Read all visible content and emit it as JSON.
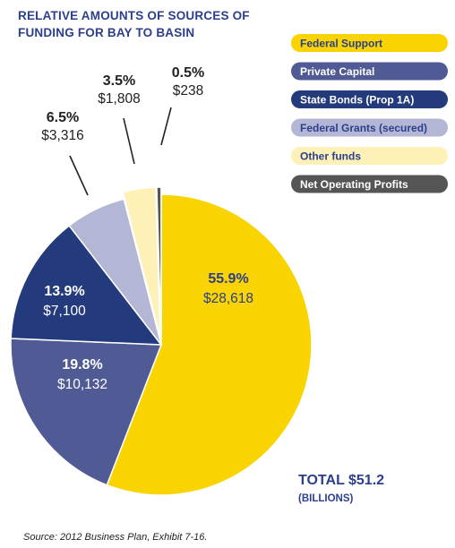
{
  "title": {
    "line1": "RELATIVE AMOUNTS OF SOURCES OF",
    "line2": "FUNDING FOR BAY TO BASIN"
  },
  "total": {
    "label": "TOTAL $51.2",
    "unit": "(BILLIONS)"
  },
  "source": "Source: 2012 Business Plan, Exhibit 7-16.",
  "colors": {
    "title": "#2b3f8c",
    "federal_support": "#f9d400",
    "private_capital": "#505b96",
    "state_bonds": "#233a7d",
    "federal_grants": "#b3b6d4",
    "other_funds": "#fdf1b8",
    "net_operating_profits": "#555555"
  },
  "chart_data": {
    "type": "pie",
    "title": "RELATIVE AMOUNTS OF SOURCES OF FUNDING FOR BAY TO BASIN",
    "slices": [
      {
        "label": "Federal Support",
        "percent": "55.9%",
        "value": "$28,618",
        "amount": 28618,
        "pct": 55.9,
        "color": "#f9d400",
        "text_color": "#2b3f8c",
        "label_position": "inside"
      },
      {
        "label": "Private Capital",
        "percent": "19.8%",
        "value": "$10,132",
        "amount": 10132,
        "pct": 19.8,
        "color": "#505b96",
        "text_color": "#ffffff",
        "label_position": "inside"
      },
      {
        "label": "State Bonds (Prop 1A)",
        "percent": "13.9%",
        "value": "$7,100",
        "amount": 7100,
        "pct": 13.9,
        "color": "#233a7d",
        "text_color": "#ffffff",
        "label_position": "inside"
      },
      {
        "label": "Federal Grants (secured)",
        "percent": "6.5%",
        "value": "$3,316",
        "amount": 3316,
        "pct": 6.5,
        "color": "#b3b6d4",
        "text_color": "#222222",
        "label_position": "outside"
      },
      {
        "label": "Other funds",
        "percent": "3.5%",
        "value": "$1,808",
        "amount": 1808,
        "pct": 3.5,
        "color": "#fdf1b8",
        "text_color": "#222222",
        "label_position": "outside"
      },
      {
        "label": "Net Operating Profits",
        "percent": "0.5%",
        "value": "$238",
        "amount": 238,
        "pct": 0.5,
        "color": "#555555",
        "text_color": "#222222",
        "label_position": "outside"
      }
    ],
    "legend": {
      "placement": "right",
      "items": [
        {
          "label": "Federal Support",
          "color": "#f9d400",
          "text_color": "#2b3f8c"
        },
        {
          "label": "Private Capital",
          "color": "#505b96",
          "text_color": "#ffffff"
        },
        {
          "label": "State Bonds (Prop 1A)",
          "color": "#233a7d",
          "text_color": "#ffffff"
        },
        {
          "label": "Federal Grants (secured)",
          "color": "#b3b6d4",
          "text_color": "#2b3f8c"
        },
        {
          "label": "Other funds",
          "color": "#fdf1b8",
          "text_color": "#2b3f8c"
        },
        {
          "label": "Net Operating Profits",
          "color": "#555555",
          "text_color": "#ffffff"
        }
      ]
    }
  }
}
